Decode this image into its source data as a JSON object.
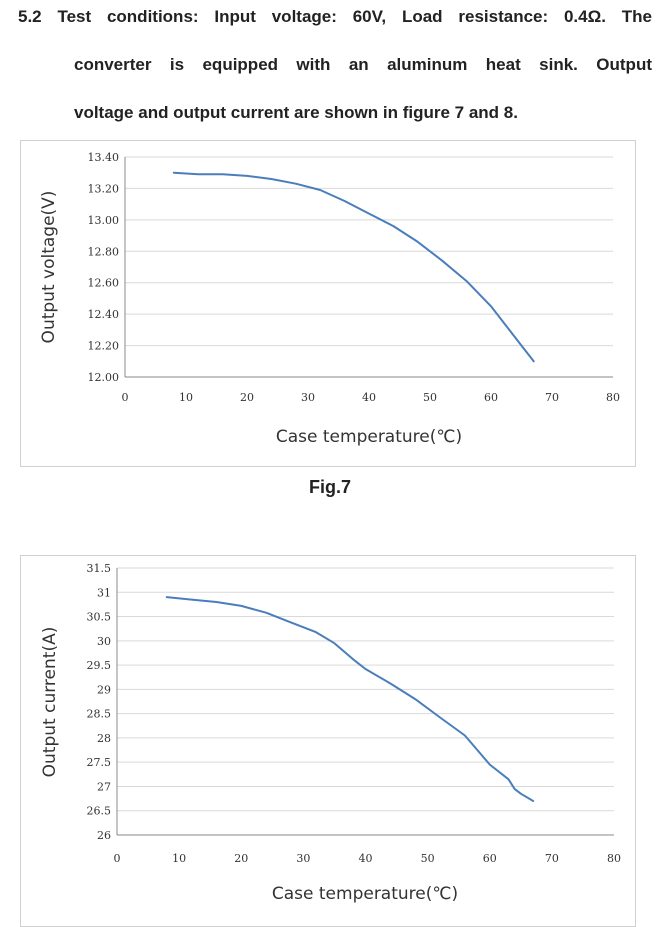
{
  "intro": {
    "line1": "5.2 Test conditions: Input voltage: 60V, Load resistance: 0.4Ω. The",
    "line2": "converter is equipped with an aluminum heat sink. Output",
    "line3": "voltage and output current are shown in figure 7 and 8."
  },
  "fig7_caption": "Fig.7",
  "chart_data": [
    {
      "type": "line",
      "xlabel": "Case temperature(℃)",
      "ylabel": "Output voltage(V)",
      "xlim": [
        0,
        80
      ],
      "ylim": [
        12.0,
        13.4
      ],
      "x_ticks": [
        "0",
        "10",
        "20",
        "30",
        "40",
        "50",
        "60",
        "70",
        "80"
      ],
      "y_ticks": [
        "12.00",
        "12.20",
        "12.40",
        "12.60",
        "12.80",
        "13.00",
        "13.20",
        "13.40"
      ],
      "grid": true,
      "line_color": "#4a7ebb",
      "series": [
        {
          "x": [
            8,
            12,
            16,
            20,
            24,
            28,
            32,
            36,
            40,
            44,
            48,
            52,
            56,
            60,
            63,
            65,
            67
          ],
          "y": [
            13.3,
            13.29,
            13.29,
            13.28,
            13.26,
            13.23,
            13.19,
            13.12,
            13.04,
            12.96,
            12.86,
            12.74,
            12.61,
            12.45,
            12.3,
            12.2,
            12.1
          ]
        }
      ]
    },
    {
      "type": "line",
      "xlabel": "Case temperature(℃)",
      "ylabel": "Output current(A)",
      "xlim": [
        0,
        80
      ],
      "ylim": [
        26,
        31.5
      ],
      "x_ticks": [
        "0",
        "10",
        "20",
        "30",
        "40",
        "50",
        "60",
        "70",
        "80"
      ],
      "y_ticks": [
        "26",
        "26.5",
        "27",
        "27.5",
        "28",
        "28.5",
        "29",
        "29.5",
        "30",
        "30.5",
        "31",
        "31.5"
      ],
      "grid": true,
      "line_color": "#4a7ebb",
      "series": [
        {
          "x": [
            8,
            12,
            16,
            20,
            24,
            28,
            32,
            35,
            38,
            40,
            44,
            48,
            52,
            56,
            58,
            60,
            63,
            64,
            65,
            67
          ],
          "y": [
            30.9,
            30.85,
            30.8,
            30.72,
            30.58,
            30.38,
            30.18,
            29.95,
            29.62,
            29.42,
            29.12,
            28.8,
            28.42,
            28.05,
            27.75,
            27.45,
            27.15,
            26.95,
            26.85,
            26.7
          ]
        }
      ]
    }
  ]
}
